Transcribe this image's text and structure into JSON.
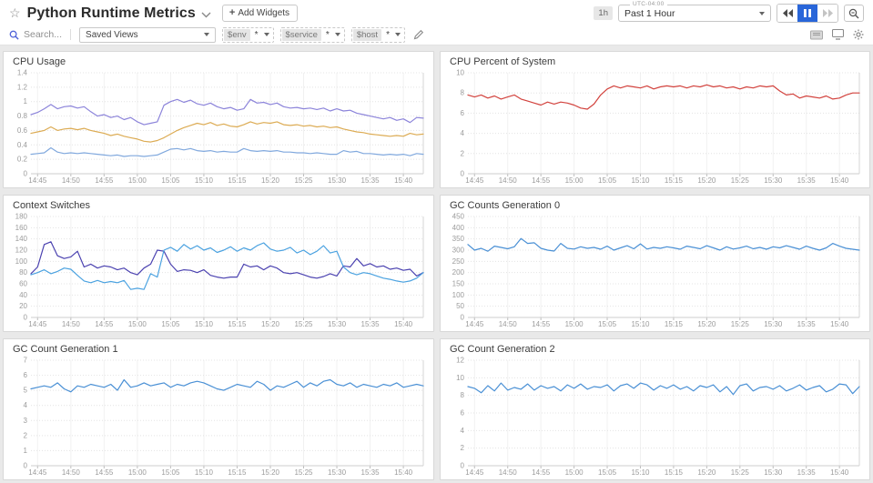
{
  "header": {
    "title": "Python Runtime Metrics",
    "add_widgets_label": "Add Widgets",
    "time_preset_badge": "1h",
    "timezone_label": "UTC-04:00",
    "time_range_value": "Past 1 Hour"
  },
  "toolbar": {
    "search_placeholder": "Search...",
    "saved_views_label": "Saved Views",
    "template_vars": [
      {
        "name": "$env",
        "value": "*"
      },
      {
        "name": "$service",
        "value": "*"
      },
      {
        "name": "$host",
        "value": "*"
      }
    ]
  },
  "icons": {
    "star": "star-outline",
    "chevron": "chevron-down",
    "plus": "+",
    "rewind": "skip-back",
    "pause": "pause (active, blue)",
    "forward": "skip-forward (disabled)",
    "zoom_out": "magnifier",
    "search": "magnifier",
    "pencil": "edit-pencil",
    "notebook": "notebook",
    "tv": "tv-screen-fullscreen",
    "gear": "settings-gear"
  },
  "colors": {
    "accent_blue": "#2966d9",
    "cpu_purple": "#8c84da",
    "cpu_orange": "#dcab53",
    "cpu_blue": "#80a8dd",
    "red": "#d2423d",
    "ctx_dark": "#4b42b0",
    "ctx_light": "#4ba2e0",
    "gc_blue": "#4a90d5"
  },
  "time_axis": [
    {
      "label": "14:45",
      "pos": 0.0169
    },
    {
      "label": "14:50",
      "pos": 0.1017
    },
    {
      "label": "14:55",
      "pos": 0.1864
    },
    {
      "label": "15:00",
      "pos": 0.2712
    },
    {
      "label": "15:05",
      "pos": 0.3559
    },
    {
      "label": "15:10",
      "pos": 0.4407
    },
    {
      "label": "15:15",
      "pos": 0.5254
    },
    {
      "label": "15:20",
      "pos": 0.6102
    },
    {
      "label": "15:25",
      "pos": 0.6949
    },
    {
      "label": "15:30",
      "pos": 0.7797
    },
    {
      "label": "15:35",
      "pos": 0.8644
    },
    {
      "label": "15:40",
      "pos": 0.9492
    }
  ],
  "chart_data": [
    {
      "type": "line",
      "title": "CPU Usage",
      "ylim": [
        0,
        1.4
      ],
      "yticks": [
        {
          "v": 0,
          "label": "0"
        },
        {
          "v": 0.2,
          "label": "0.2"
        },
        {
          "v": 0.4,
          "label": "0.4"
        },
        {
          "v": 0.6,
          "label": "0.6"
        },
        {
          "v": 0.8,
          "label": "0.8"
        },
        {
          "v": 1,
          "label": "1"
        },
        {
          "v": 1.2,
          "label": "1.2"
        },
        {
          "v": 1.4,
          "label": "1.4"
        }
      ],
      "series": [
        {
          "color": "#8c84da",
          "values": [
            0.82,
            0.85,
            0.9,
            0.96,
            0.9,
            0.93,
            0.94,
            0.91,
            0.93,
            0.86,
            0.8,
            0.82,
            0.78,
            0.8,
            0.75,
            0.78,
            0.72,
            0.68,
            0.7,
            0.72,
            0.95,
            1.0,
            1.03,
            0.99,
            1.02,
            0.97,
            0.95,
            0.98,
            0.93,
            0.9,
            0.92,
            0.88,
            0.9,
            1.03,
            0.98,
            0.99,
            0.96,
            0.98,
            0.93,
            0.91,
            0.92,
            0.9,
            0.91,
            0.89,
            0.91,
            0.87,
            0.9,
            0.87,
            0.88,
            0.84,
            0.82,
            0.8,
            0.78,
            0.76,
            0.78,
            0.74,
            0.76,
            0.71,
            0.78,
            0.77
          ]
        },
        {
          "color": "#dcab53",
          "values": [
            0.56,
            0.58,
            0.6,
            0.65,
            0.6,
            0.62,
            0.63,
            0.61,
            0.63,
            0.6,
            0.58,
            0.56,
            0.53,
            0.55,
            0.52,
            0.5,
            0.48,
            0.45,
            0.44,
            0.46,
            0.5,
            0.55,
            0.6,
            0.64,
            0.67,
            0.7,
            0.68,
            0.71,
            0.67,
            0.69,
            0.66,
            0.65,
            0.68,
            0.72,
            0.69,
            0.71,
            0.7,
            0.72,
            0.68,
            0.67,
            0.68,
            0.66,
            0.67,
            0.65,
            0.66,
            0.64,
            0.65,
            0.62,
            0.6,
            0.58,
            0.57,
            0.55,
            0.54,
            0.53,
            0.52,
            0.53,
            0.52,
            0.56,
            0.54,
            0.55
          ]
        },
        {
          "color": "#80a8dd",
          "values": [
            0.27,
            0.28,
            0.29,
            0.36,
            0.3,
            0.28,
            0.29,
            0.28,
            0.29,
            0.28,
            0.27,
            0.26,
            0.25,
            0.26,
            0.24,
            0.25,
            0.25,
            0.24,
            0.25,
            0.26,
            0.3,
            0.34,
            0.35,
            0.33,
            0.35,
            0.32,
            0.31,
            0.32,
            0.3,
            0.31,
            0.3,
            0.3,
            0.35,
            0.32,
            0.31,
            0.32,
            0.31,
            0.32,
            0.3,
            0.3,
            0.29,
            0.29,
            0.28,
            0.29,
            0.28,
            0.27,
            0.27,
            0.32,
            0.3,
            0.31,
            0.28,
            0.28,
            0.27,
            0.26,
            0.27,
            0.26,
            0.27,
            0.25,
            0.28,
            0.27
          ]
        }
      ]
    },
    {
      "type": "line",
      "title": "CPU Percent of System",
      "ylim": [
        0,
        10
      ],
      "yticks": [
        {
          "v": 0,
          "label": "0"
        },
        {
          "v": 2,
          "label": "2"
        },
        {
          "v": 4,
          "label": "4"
        },
        {
          "v": 6,
          "label": "6"
        },
        {
          "v": 8,
          "label": "8"
        },
        {
          "v": 10,
          "label": "10"
        }
      ],
      "series": [
        {
          "color": "#d2423d",
          "values": [
            7.8,
            7.6,
            7.8,
            7.5,
            7.7,
            7.4,
            7.6,
            7.8,
            7.4,
            7.2,
            7.0,
            6.8,
            7.1,
            6.9,
            7.1,
            7.0,
            6.8,
            6.5,
            6.4,
            6.9,
            7.8,
            8.4,
            8.7,
            8.5,
            8.7,
            8.6,
            8.5,
            8.7,
            8.4,
            8.6,
            8.7,
            8.6,
            8.7,
            8.5,
            8.7,
            8.6,
            8.8,
            8.6,
            8.7,
            8.5,
            8.6,
            8.4,
            8.6,
            8.5,
            8.7,
            8.6,
            8.7,
            8.2,
            7.8,
            7.9,
            7.5,
            7.7,
            7.6,
            7.5,
            7.7,
            7.4,
            7.5,
            7.8,
            8.0,
            8.0
          ]
        }
      ]
    },
    {
      "type": "line",
      "title": "Context Switches",
      "ylim": [
        0,
        180
      ],
      "yticks": [
        {
          "v": 0,
          "label": "0"
        },
        {
          "v": 20,
          "label": "20"
        },
        {
          "v": 40,
          "label": "40"
        },
        {
          "v": 60,
          "label": "60"
        },
        {
          "v": 80,
          "label": "80"
        },
        {
          "v": 100,
          "label": "100"
        },
        {
          "v": 120,
          "label": "120"
        },
        {
          "v": 140,
          "label": "140"
        },
        {
          "v": 160,
          "label": "160"
        },
        {
          "v": 180,
          "label": "180"
        }
      ],
      "series": [
        {
          "color": "#4b42b0",
          "values": [
            78,
            90,
            130,
            135,
            110,
            105,
            108,
            118,
            90,
            95,
            88,
            92,
            90,
            85,
            88,
            80,
            76,
            88,
            95,
            120,
            118,
            95,
            82,
            85,
            84,
            80,
            85,
            75,
            72,
            70,
            72,
            72,
            95,
            90,
            92,
            85,
            92,
            88,
            80,
            78,
            80,
            76,
            72,
            70,
            73,
            78,
            74,
            92,
            90,
            105,
            92,
            96,
            90,
            92,
            86,
            88,
            84,
            86,
            74,
            80
          ]
        },
        {
          "color": "#4ba2e0",
          "values": [
            76,
            80,
            85,
            78,
            82,
            88,
            86,
            75,
            65,
            62,
            66,
            62,
            64,
            62,
            66,
            50,
            52,
            50,
            78,
            72,
            120,
            125,
            118,
            130,
            122,
            128,
            120,
            124,
            116,
            120,
            126,
            118,
            124,
            120,
            128,
            133,
            122,
            118,
            120,
            125,
            115,
            120,
            112,
            118,
            128,
            115,
            118,
            90,
            80,
            76,
            80,
            78,
            74,
            70,
            68,
            65,
            63,
            65,
            70,
            80
          ]
        }
      ]
    },
    {
      "type": "line",
      "title": "GC Counts Generation 0",
      "ylim": [
        0,
        450
      ],
      "yticks": [
        {
          "v": 0,
          "label": "0"
        },
        {
          "v": 50,
          "label": "50"
        },
        {
          "v": 100,
          "label": "100"
        },
        {
          "v": 150,
          "label": "150"
        },
        {
          "v": 200,
          "label": "200"
        },
        {
          "v": 250,
          "label": "250"
        },
        {
          "v": 300,
          "label": "300"
        },
        {
          "v": 350,
          "label": "350"
        },
        {
          "v": 400,
          "label": "400"
        },
        {
          "v": 450,
          "label": "450"
        }
      ],
      "series": [
        {
          "color": "#4a90d5",
          "values": [
            325,
            300,
            308,
            295,
            318,
            312,
            306,
            315,
            352,
            330,
            333,
            308,
            300,
            296,
            330,
            308,
            305,
            315,
            308,
            312,
            304,
            318,
            300,
            310,
            320,
            306,
            328,
            305,
            312,
            308,
            315,
            310,
            304,
            318,
            312,
            306,
            320,
            310,
            300,
            315,
            305,
            310,
            318,
            306,
            312,
            304,
            315,
            310,
            320,
            312,
            304,
            318,
            308,
            300,
            310,
            330,
            318,
            308,
            304,
            300
          ]
        }
      ]
    },
    {
      "type": "line",
      "title": "GC Count Generation 1",
      "ylim": [
        0,
        7
      ],
      "yticks": [
        {
          "v": 0,
          "label": "0"
        },
        {
          "v": 1,
          "label": "1"
        },
        {
          "v": 2,
          "label": "2"
        },
        {
          "v": 3,
          "label": "3"
        },
        {
          "v": 4,
          "label": "4"
        },
        {
          "v": 5,
          "label": "5"
        },
        {
          "v": 6,
          "label": "6"
        },
        {
          "v": 7,
          "label": "7"
        }
      ],
      "series": [
        {
          "color": "#4a90d5",
          "values": [
            5.1,
            5.2,
            5.3,
            5.2,
            5.5,
            5.1,
            4.9,
            5.3,
            5.2,
            5.4,
            5.3,
            5.2,
            5.4,
            5.0,
            5.7,
            5.2,
            5.3,
            5.5,
            5.3,
            5.4,
            5.5,
            5.2,
            5.4,
            5.3,
            5.5,
            5.6,
            5.5,
            5.3,
            5.1,
            5.0,
            5.2,
            5.4,
            5.3,
            5.2,
            5.6,
            5.4,
            5.0,
            5.3,
            5.2,
            5.4,
            5.6,
            5.2,
            5.5,
            5.3,
            5.6,
            5.7,
            5.4,
            5.3,
            5.5,
            5.2,
            5.4,
            5.3,
            5.2,
            5.4,
            5.3,
            5.5,
            5.2,
            5.3,
            5.4,
            5.3
          ]
        }
      ]
    },
    {
      "type": "line",
      "title": "GC Count Generation 2",
      "ylim": [
        0,
        12
      ],
      "yticks": [
        {
          "v": 0,
          "label": "0"
        },
        {
          "v": 2,
          "label": "2"
        },
        {
          "v": 4,
          "label": "4"
        },
        {
          "v": 6,
          "label": "6"
        },
        {
          "v": 8,
          "label": "8"
        },
        {
          "v": 10,
          "label": "10"
        },
        {
          "v": 12,
          "label": "12"
        }
      ],
      "series": [
        {
          "color": "#4a90d5",
          "values": [
            9.0,
            8.8,
            8.3,
            9.1,
            8.5,
            9.4,
            8.6,
            8.9,
            8.7,
            9.3,
            8.6,
            9.1,
            8.8,
            9.0,
            8.5,
            9.2,
            8.8,
            9.3,
            8.7,
            9.0,
            8.9,
            9.2,
            8.5,
            9.1,
            9.3,
            8.8,
            9.4,
            9.2,
            8.6,
            9.1,
            8.8,
            9.2,
            8.7,
            9.0,
            8.5,
            9.1,
            8.9,
            9.2,
            8.4,
            9.0,
            8.1,
            9.1,
            9.3,
            8.5,
            8.9,
            9.0,
            8.7,
            9.1,
            8.5,
            8.8,
            9.2,
            8.6,
            8.9,
            9.1,
            8.4,
            8.7,
            9.3,
            9.2,
            8.2,
            9.0
          ]
        }
      ]
    }
  ]
}
